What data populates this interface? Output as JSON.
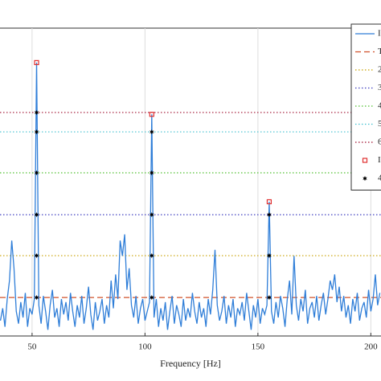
{
  "chart_data": {
    "type": "line",
    "xlabel": "Frequency [Hz]",
    "xlim": [
      35.8,
      204.5
    ],
    "ylim": [
      0,
      1
    ],
    "xticks": [
      50,
      100,
      150,
      200
    ],
    "grid": true,
    "legend": "upper right",
    "series": [
      {
        "name": "I",
        "color": "#2f7ed8",
        "style": "solid",
        "x": [
          36,
          37,
          38,
          39,
          40,
          41,
          42,
          43,
          44,
          45,
          46,
          47,
          48,
          49,
          50,
          51,
          52,
          53,
          54,
          55,
          56,
          57,
          58,
          59,
          60,
          61,
          62,
          63,
          64,
          65,
          66,
          67,
          68,
          69,
          70,
          71,
          72,
          73,
          74,
          75,
          76,
          77,
          78,
          79,
          80,
          81,
          82,
          83,
          84,
          85,
          86,
          87,
          88,
          89,
          90,
          91,
          92,
          93,
          94,
          95,
          96,
          97,
          98,
          99,
          100,
          101,
          102,
          103,
          104,
          105,
          106,
          107,
          108,
          109,
          110,
          111,
          112,
          113,
          114,
          115,
          116,
          117,
          118,
          119,
          120,
          121,
          122,
          123,
          124,
          125,
          126,
          127,
          128,
          129,
          130,
          131,
          132,
          133,
          134,
          135,
          136,
          137,
          138,
          139,
          140,
          141,
          142,
          143,
          144,
          145,
          146,
          147,
          148,
          149,
          150,
          151,
          152,
          153,
          154,
          155,
          156,
          157,
          158,
          159,
          160,
          161,
          162,
          163,
          164,
          165,
          166,
          167,
          168,
          169,
          170,
          171,
          172,
          173,
          174,
          175,
          176,
          177,
          178,
          179,
          180,
          181,
          182,
          183,
          184,
          185,
          186,
          187,
          188,
          189,
          190,
          191,
          192,
          193,
          194,
          195,
          196,
          197,
          198,
          199,
          200,
          201,
          202,
          203,
          204
        ],
        "values": [
          0.05,
          0.09,
          0.03,
          0.12,
          0.18,
          0.31,
          0.22,
          0.08,
          0.04,
          0.11,
          0.06,
          0.14,
          0.03,
          0.09,
          0.07,
          0.12,
          0.888,
          0.1,
          0.04,
          0.13,
          0.08,
          0.02,
          0.1,
          0.15,
          0.06,
          0.09,
          0.03,
          0.12,
          0.07,
          0.11,
          0.05,
          0.14,
          0.08,
          0.03,
          0.1,
          0.06,
          0.13,
          0.04,
          0.09,
          0.16,
          0.07,
          0.02,
          0.11,
          0.05,
          0.08,
          0.12,
          0.04,
          0.1,
          0.06,
          0.18,
          0.09,
          0.2,
          0.12,
          0.31,
          0.26,
          0.33,
          0.15,
          0.22,
          0.1,
          0.06,
          0.13,
          0.04,
          0.09,
          0.12,
          0.05,
          0.08,
          0.11,
          0.72,
          0.06,
          0.12,
          0.03,
          0.09,
          0.05,
          0.11,
          0.02,
          0.08,
          0.13,
          0.04,
          0.1,
          0.07,
          0.03,
          0.12,
          0.05,
          0.09,
          0.06,
          0.14,
          0.08,
          0.04,
          0.11,
          0.06,
          0.09,
          0.03,
          0.12,
          0.07,
          0.15,
          0.28,
          0.1,
          0.05,
          0.08,
          0.13,
          0.04,
          0.1,
          0.06,
          0.12,
          0.03,
          0.09,
          0.07,
          0.11,
          0.05,
          0.14,
          0.08,
          0.02,
          0.1,
          0.06,
          0.12,
          0.04,
          0.09,
          0.07,
          0.1,
          0.436,
          0.08,
          0.04,
          0.11,
          0.06,
          0.13,
          0.09,
          0.03,
          0.12,
          0.18,
          0.07,
          0.26,
          0.1,
          0.05,
          0.12,
          0.08,
          0.15,
          0.04,
          0.09,
          0.11,
          0.06,
          0.13,
          0.05,
          0.1,
          0.14,
          0.07,
          0.12,
          0.18,
          0.15,
          0.2,
          0.11,
          0.16,
          0.08,
          0.13,
          0.06,
          0.1,
          0.04,
          0.12,
          0.08,
          0.14,
          0.05,
          0.09,
          0.11,
          0.06,
          0.15,
          0.08,
          0.12,
          0.2,
          0.1,
          0.14
        ]
      },
      {
        "name": "T",
        "color": "#d0502a",
        "style": "dashed",
        "x": [
          35.8,
          204.5
        ],
        "values": [
          0.125,
          0.125
        ]
      },
      {
        "name": "2",
        "color": "#c8a000",
        "style": "dotted",
        "x": [
          35.8,
          204.5
        ],
        "values": [
          0.261,
          0.261
        ]
      },
      {
        "name": "3",
        "color": "#4040c0",
        "style": "dotted",
        "x": [
          35.8,
          204.5
        ],
        "values": [
          0.394,
          0.394
        ]
      },
      {
        "name": "4",
        "color": "#50c030",
        "style": "dotted",
        "x": [
          35.8,
          204.5
        ],
        "values": [
          0.53,
          0.53
        ]
      },
      {
        "name": "5",
        "color": "#40c0d0",
        "style": "dotted",
        "x": [
          35.8,
          204.5
        ],
        "values": [
          0.663,
          0.663
        ]
      },
      {
        "name": "6",
        "color": "#a01030",
        "style": "dotted",
        "x": [
          35.8,
          204.5
        ],
        "values": [
          0.726,
          0.726
        ]
      },
      {
        "name": "I",
        "color": "#e03030",
        "marker": "square",
        "x": [
          52,
          103,
          155
        ],
        "values": [
          0.888,
          0.72,
          0.436
        ]
      },
      {
        "name": "4",
        "color": "#000000",
        "marker": "star",
        "x": [
          52,
          52,
          52,
          52,
          52,
          52,
          103,
          103,
          103,
          103,
          103,
          155,
          155,
          155
        ],
        "values": [
          0.125,
          0.261,
          0.394,
          0.53,
          0.663,
          0.726,
          0.125,
          0.261,
          0.394,
          0.53,
          0.663,
          0.125,
          0.261,
          0.394
        ]
      }
    ]
  }
}
